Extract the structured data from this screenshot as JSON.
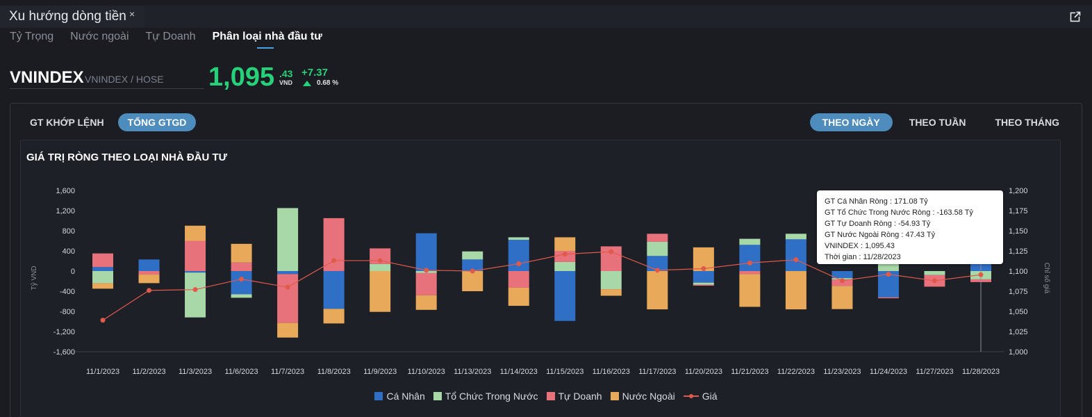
{
  "window": {
    "tab_title": "Xu hướng dòng tiền",
    "close_glyph": "×",
    "expand_icon": "external-link-icon"
  },
  "subtabs": [
    {
      "label": "Tỷ Trọng",
      "active": false
    },
    {
      "label": "Nước ngoài",
      "active": false
    },
    {
      "label": "Tự Doanh",
      "active": false
    },
    {
      "label": "Phân loại nhà đầu tư",
      "active": true
    }
  ],
  "ticker": {
    "symbol": "VNINDEX",
    "exchange": "VNINDEX / HOSE",
    "price_int": "1,095",
    "price_dec": ".43",
    "unit": "VND",
    "change": "+7.37",
    "change_pct": "0.68 %",
    "color_up": "#26d17a"
  },
  "value_toggle": [
    {
      "label": "GT KHỚP LỆNH",
      "active": false
    },
    {
      "label": "TỔNG GTGD",
      "active": true
    }
  ],
  "period_toggle": [
    {
      "label": "THEO NGÀY",
      "active": true
    },
    {
      "label": "THEO TUẦN",
      "active": false
    },
    {
      "label": "THEO THÁNG",
      "active": false
    }
  ],
  "tooltip": {
    "lines": [
      "GT Cá Nhân Ròng  : 171.08 Tỷ",
      "GT Tổ Chức Trong Nước Ròng : -163.58 Tỷ",
      "GT Tự Doanh Ròng : -54.93 Tỷ",
      "GT Nước Ngoài Ròng : 47.43 Tỷ",
      "VNINDEX : 1,095.43",
      "Thời gian : 11/28/2023"
    ]
  },
  "chart_data": {
    "type": "bar",
    "title": "GIÁ TRỊ RÒNG THEO LOẠI NHÀ ĐẦU TƯ",
    "stacked": true,
    "ylabel": "Tỷ VND",
    "y2label": "Chỉ số giá",
    "ylim": [
      -1600,
      1600
    ],
    "y_ticks": [
      1600,
      1200,
      800,
      400,
      0,
      -400,
      -800,
      -1200,
      -1600
    ],
    "y_tick_labels": [
      "1,600",
      "1,200",
      "800",
      "400",
      "0",
      "-400",
      "-800",
      "-1,200",
      "-1,600"
    ],
    "y2lim": [
      1000,
      1200
    ],
    "y2_ticks": [
      1200,
      1175,
      1150,
      1125,
      1100,
      1075,
      1050,
      1025,
      1000
    ],
    "y2_tick_labels": [
      "1,200",
      "1,175",
      "1,150",
      "1,125",
      "1,100",
      "1,075",
      "1,050",
      "1,025",
      "1,000"
    ],
    "categories": [
      "11/1/2023",
      "11/2/2023",
      "11/3/2023",
      "11/6/2023",
      "11/7/2023",
      "11/8/2023",
      "11/9/2023",
      "11/10/2023",
      "11/13/2023",
      "11/14/2023",
      "11/15/2023",
      "11/16/2023",
      "11/17/2023",
      "11/20/2023",
      "11/21/2023",
      "11/22/2023",
      "11/23/2023",
      "11/24/2023",
      "11/27/2023",
      "11/28/2023"
    ],
    "series": [
      {
        "name": "Cá Nhân",
        "color": "#2f6fc6",
        "values": [
          80,
          230,
          -30,
          -460,
          -60,
          -750,
          0,
          750,
          230,
          620,
          -990,
          0,
          300,
          -230,
          520,
          630,
          -140,
          -520,
          0,
          171
        ]
      },
      {
        "name": "Tổ Chức Trong Nước",
        "color": "#a8d8a8",
        "values": [
          -240,
          0,
          -890,
          -70,
          1250,
          0,
          140,
          -40,
          160,
          50,
          180,
          -360,
          280,
          -40,
          120,
          110,
          -25,
          340,
          -80,
          -164
        ]
      },
      {
        "name": "Tự Doanh",
        "color": "#e8727c",
        "values": [
          270,
          -70,
          600,
          170,
          -970,
          1050,
          310,
          -440,
          0,
          -330,
          220,
          490,
          160,
          -20,
          -60,
          0,
          -130,
          -20,
          -230,
          -55
        ]
      },
      {
        "name": "Nước Ngoài",
        "color": "#e9a95a",
        "values": [
          -110,
          -170,
          300,
          370,
          -290,
          -290,
          -810,
          -290,
          -400,
          -360,
          270,
          -130,
          -760,
          470,
          -650,
          -760,
          -460,
          0,
          0,
          47
        ]
      },
      {
        "name": "Giá",
        "type": "line",
        "axis": "right",
        "color": "#e05a4b",
        "values": [
          1039,
          1076,
          1077,
          1090,
          1080,
          1113,
          1113,
          1101,
          1100,
          1109,
          1121,
          1124,
          1101,
          1103,
          1110,
          1114,
          1088,
          1096,
          1088,
          1095.43
        ]
      }
    ],
    "legend_position": "bottom",
    "grid": false
  }
}
